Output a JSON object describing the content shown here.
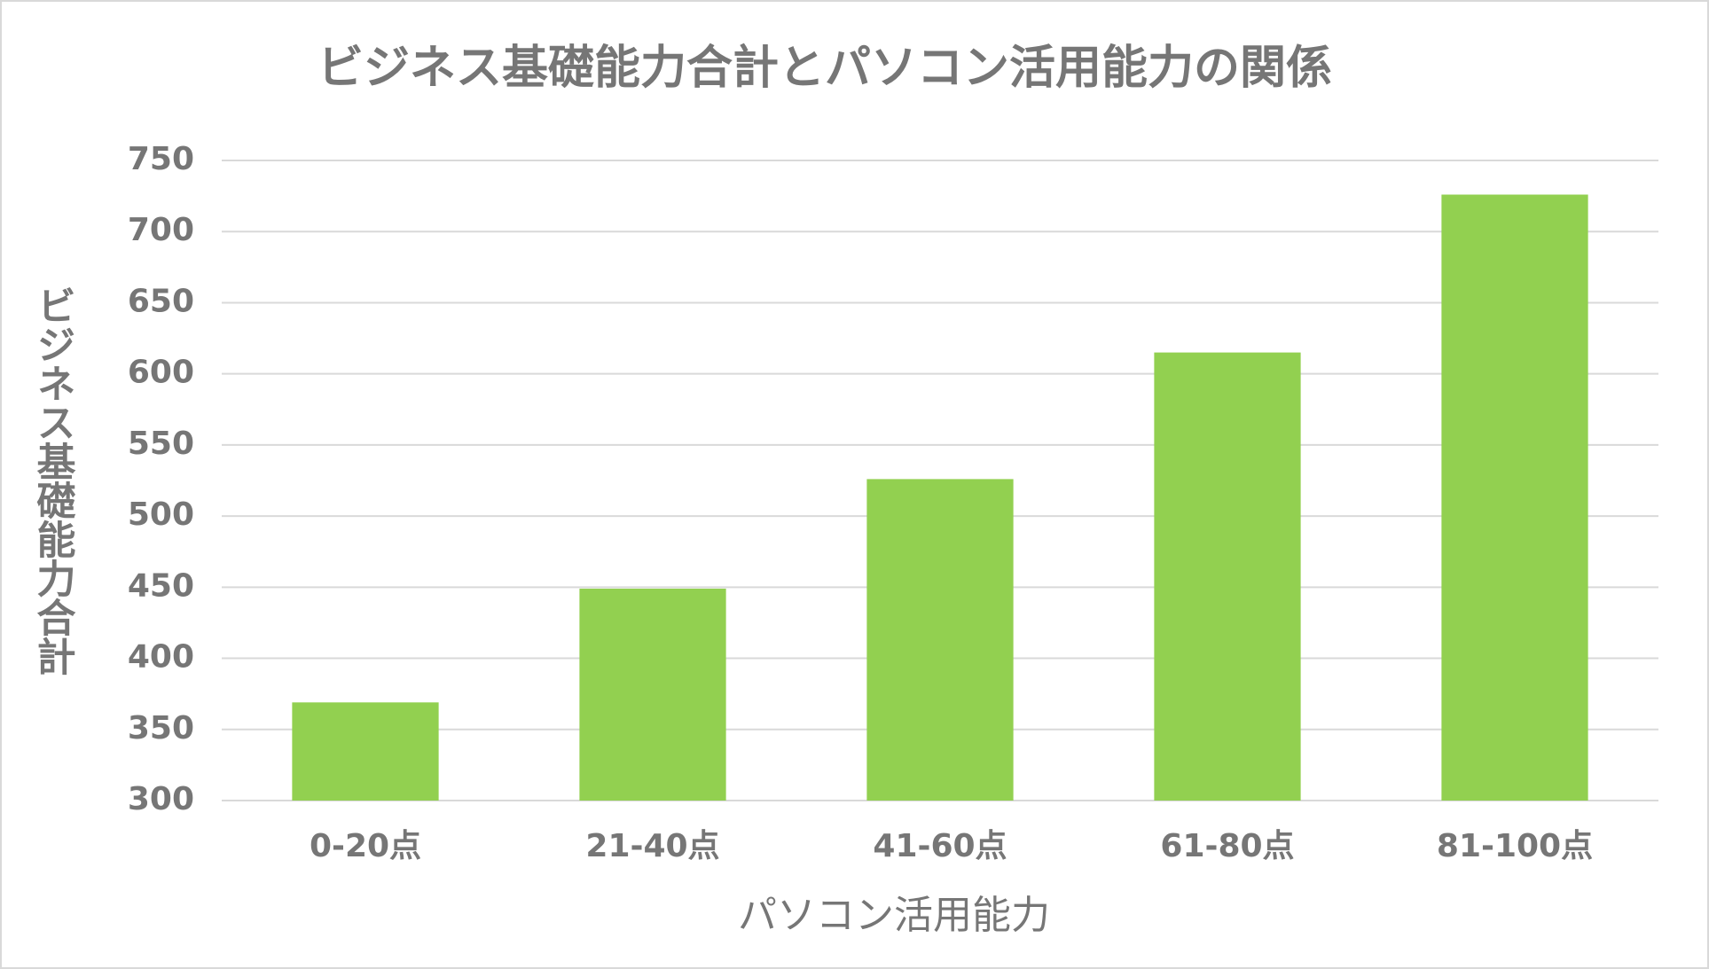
{
  "chart_data": {
    "type": "bar",
    "title": "ビジネス基礎能力合計とパソコン活用能力の関係",
    "x_label": "パソコン活用能力",
    "y_label": "ビジネス基礎能力合計",
    "categories": [
      "0-20点",
      "21-40点",
      "41-60点",
      "61-80点",
      "81-100点"
    ],
    "values": [
      369,
      449,
      526,
      615,
      726
    ],
    "color": "#92d050",
    "ylim": [
      300,
      750
    ],
    "yticks": [
      300,
      350,
      400,
      450,
      500,
      550,
      600,
      650,
      700,
      750
    ],
    "grid": true
  }
}
